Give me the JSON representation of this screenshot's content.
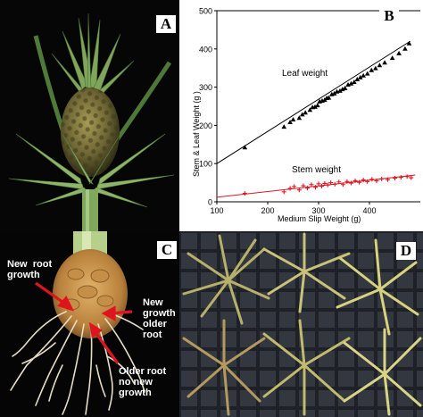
{
  "panels": {
    "a": {
      "letter": "A"
    },
    "b": {
      "letter": "B"
    },
    "c": {
      "letter": "C",
      "labels": {
        "new_root_growth": "New  root\ngrowth",
        "new_growth_older_root": "New\ngrowth\nolder\nroot",
        "older_root_no_new_growth": "Older root\nno new\ngrowth"
      }
    },
    "d": {
      "letter": "D"
    }
  },
  "colors": {
    "leaf_series": "#000000",
    "stem_series": "#e0141e",
    "arrow": "#e0141e"
  },
  "chart_data": {
    "type": "scatter",
    "title": "",
    "xlabel": "Medium Slip Weight (g)",
    "ylabel": "Stem & Leaf Weight (g )",
    "xlim": [
      100,
      500
    ],
    "ylim": [
      0,
      500
    ],
    "x_ticks": [
      "100",
      "200",
      "300",
      "400"
    ],
    "y_ticks": [
      "0",
      "100",
      "200",
      "300",
      "400",
      "500"
    ],
    "grid": false,
    "series": [
      {
        "name": "Leaf weight",
        "marker": "triangle",
        "color": "#000000",
        "trendline": [
          [
            100,
            100
          ],
          [
            480,
            420
          ]
        ],
        "points": [
          [
            155,
            142
          ],
          [
            232,
            196
          ],
          [
            244,
            208
          ],
          [
            250,
            215
          ],
          [
            262,
            219
          ],
          [
            268,
            228
          ],
          [
            274,
            233
          ],
          [
            283,
            240
          ],
          [
            288,
            247
          ],
          [
            293,
            248
          ],
          [
            298,
            252
          ],
          [
            302,
            262
          ],
          [
            307,
            264
          ],
          [
            312,
            266
          ],
          [
            316,
            271
          ],
          [
            320,
            272
          ],
          [
            326,
            281
          ],
          [
            331,
            283
          ],
          [
            336,
            288
          ],
          [
            342,
            290
          ],
          [
            347,
            294
          ],
          [
            352,
            297
          ],
          [
            358,
            306
          ],
          [
            364,
            309
          ],
          [
            370,
            313
          ],
          [
            376,
            320
          ],
          [
            382,
            325
          ],
          [
            388,
            330
          ],
          [
            396,
            335
          ],
          [
            404,
            344
          ],
          [
            412,
            349
          ],
          [
            420,
            357
          ],
          [
            430,
            364
          ],
          [
            445,
            376
          ],
          [
            458,
            388
          ],
          [
            470,
            400
          ],
          [
            478,
            414
          ]
        ]
      },
      {
        "name": "Stem weight",
        "marker": "plus",
        "color": "#e0141e",
        "trendline": [
          [
            100,
            12
          ],
          [
            490,
            70
          ]
        ],
        "points": [
          [
            155,
            22
          ],
          [
            232,
            26
          ],
          [
            244,
            35
          ],
          [
            252,
            40
          ],
          [
            262,
            31
          ],
          [
            270,
            42
          ],
          [
            278,
            36
          ],
          [
            286,
            45
          ],
          [
            294,
            38
          ],
          [
            300,
            47
          ],
          [
            306,
            41
          ],
          [
            312,
            48
          ],
          [
            318,
            44
          ],
          [
            324,
            50
          ],
          [
            332,
            46
          ],
          [
            340,
            52
          ],
          [
            348,
            45
          ],
          [
            356,
            53
          ],
          [
            364,
            49
          ],
          [
            372,
            55
          ],
          [
            380,
            51
          ],
          [
            388,
            57
          ],
          [
            396,
            53
          ],
          [
            405,
            59
          ],
          [
            414,
            55
          ],
          [
            424,
            60
          ],
          [
            436,
            58
          ],
          [
            450,
            62
          ],
          [
            462,
            64
          ],
          [
            474,
            66
          ],
          [
            482,
            63
          ]
        ]
      }
    ]
  }
}
